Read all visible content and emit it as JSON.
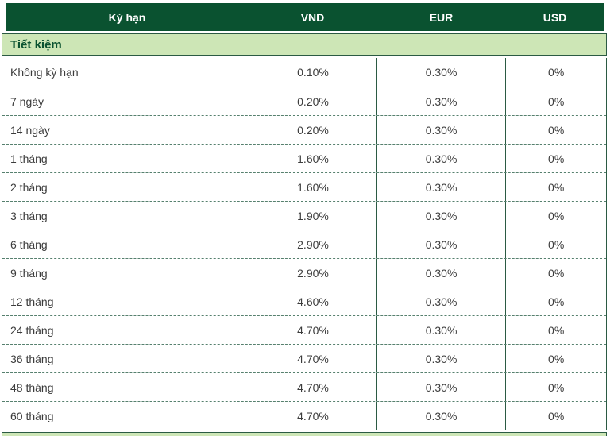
{
  "colors": {
    "dark_green": "#0a5230",
    "light_green": "#cde6b6",
    "solid_border": "#2b5a43",
    "dashed_border": "#56806e"
  },
  "table": {
    "columns": {
      "term": "Kỳ hạn",
      "vnd": "VND",
      "eur": "EUR",
      "usd": "USD"
    },
    "section_title": "Tiết kiệm",
    "rows": [
      {
        "term": "Không kỳ hạn",
        "vnd": "0.10%",
        "eur": "0.30%",
        "usd": "0%"
      },
      {
        "term": "7 ngày",
        "vnd": "0.20%",
        "eur": "0.30%",
        "usd": "0%"
      },
      {
        "term": "14 ngày",
        "vnd": "0.20%",
        "eur": "0.30%",
        "usd": "0%"
      },
      {
        "term": "1 tháng",
        "vnd": "1.60%",
        "eur": "0.30%",
        "usd": "0%"
      },
      {
        "term": "2 tháng",
        "vnd": "1.60%",
        "eur": "0.30%",
        "usd": "0%"
      },
      {
        "term": "3 tháng",
        "vnd": "1.90%",
        "eur": "0.30%",
        "usd": "0%"
      },
      {
        "term": "6 tháng",
        "vnd": "2.90%",
        "eur": "0.30%",
        "usd": "0%"
      },
      {
        "term": "9 tháng",
        "vnd": "2.90%",
        "eur": "0.30%",
        "usd": "0%"
      },
      {
        "term": "12 tháng",
        "vnd": "4.60%",
        "eur": "0.30%",
        "usd": "0%"
      },
      {
        "term": "24 tháng",
        "vnd": "4.70%",
        "eur": "0.30%",
        "usd": "0%"
      },
      {
        "term": "36 tháng",
        "vnd": "4.70%",
        "eur": "0.30%",
        "usd": "0%"
      },
      {
        "term": "48 tháng",
        "vnd": "4.70%",
        "eur": "0.30%",
        "usd": "0%"
      },
      {
        "term": "60 tháng",
        "vnd": "4.70%",
        "eur": "0.30%",
        "usd": "0%"
      }
    ]
  }
}
